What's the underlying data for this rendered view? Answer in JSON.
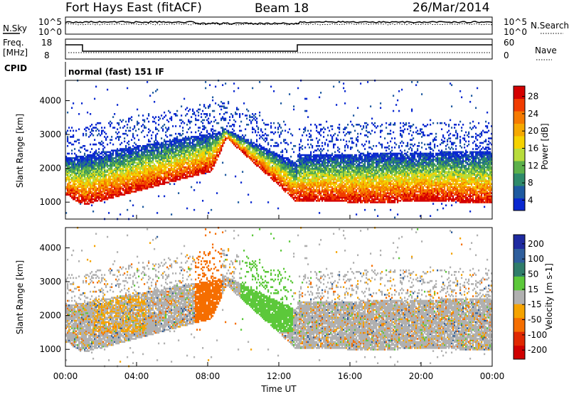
{
  "header": {
    "station": "Fort Hays East (fitACF)",
    "beam": "Beam 18",
    "date": "26/Mar/2014"
  },
  "panels": {
    "nsky_label": "N.Sky",
    "nsearch_label": "N.Search",
    "freq_label": "Freq.",
    "freq_unit": "[MHz]",
    "nave_label": "Nave",
    "cpid_label": "CPID",
    "cpid_text": "normal (fast) 151 IF",
    "nsky_ticks": [
      "10^5",
      "10^0"
    ],
    "nsearch_ticks": [
      "10^5",
      "10^0"
    ],
    "freq_ticks": [
      "18",
      "8"
    ],
    "nave_ticks": [
      "60",
      "0"
    ]
  },
  "colorbars": {
    "power": {
      "label": "Power [dB]",
      "ticks": [
        "28",
        "24",
        "20",
        "16",
        "12",
        "8",
        "4"
      ],
      "colors": [
        "#d40000",
        "#f03c00",
        "#f57a00",
        "#f5a800",
        "#f5d200",
        "#b8dc3c",
        "#5cb04a",
        "#2e8a6a",
        "#1e5aa0",
        "#0a28d0"
      ]
    },
    "velocity": {
      "label": "Velocity [m s-1]",
      "ticks": [
        "200",
        "100",
        "50",
        "15",
        "-15",
        "-50",
        "-100",
        "-200"
      ],
      "colors": [
        "#1e2aa0",
        "#2e5e9c",
        "#2f7d6a",
        "#5cc83a",
        "#b0b0b0",
        "#f5a300",
        "#f56e00",
        "#e02800",
        "#d00000"
      ]
    }
  },
  "chart_data": [
    {
      "type": "heatmap",
      "xlabel": "Time UT",
      "ylabel": "Slant Range [km]",
      "x_ticks": [
        "00:00",
        "04:00",
        "08:00",
        "12:00",
        "16:00",
        "20:00",
        "00:00"
      ],
      "y_ticks": [
        "1000",
        "2000",
        "3000",
        "4000"
      ],
      "ylim": [
        500,
        4600
      ],
      "xlim_hours": [
        0,
        24
      ],
      "value_label": "Power [dB]",
      "colorbar_range": [
        0,
        30
      ]
    },
    {
      "type": "heatmap",
      "xlabel": "Time UT",
      "ylabel": "Slant Range [km]",
      "x_ticks": [
        "00:00",
        "04:00",
        "08:00",
        "12:00",
        "16:00",
        "20:00",
        "00:00"
      ],
      "y_ticks": [
        "1000",
        "2000",
        "3000",
        "4000"
      ],
      "ylim": [
        500,
        4600
      ],
      "xlim_hours": [
        0,
        24
      ],
      "value_label": "Velocity [m s-1]",
      "colorbar_range": [
        -250,
        250
      ]
    }
  ]
}
